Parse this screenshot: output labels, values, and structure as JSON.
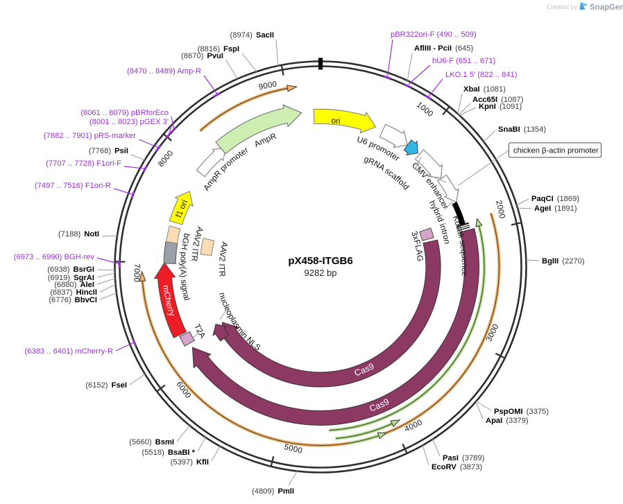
{
  "header": {
    "created_by": "Created by",
    "brand": "SnapGene"
  },
  "plasmid": {
    "name": "pX458-ITGB6",
    "size": "9282 bp"
  },
  "map": {
    "ticks": [
      "1000",
      "2000",
      "3000",
      "4000",
      "5000",
      "6000",
      "7000",
      "8000",
      "9000"
    ]
  },
  "features": {
    "ori": "ori",
    "u6_promoter": "U6 promoter",
    "grna_scaffold": "gRNA scaffold",
    "cmv_enhancer": "CMV enhancer",
    "chicken_promoter": "chicken β-actin promoter",
    "hybrid_intron": "hybrid intron",
    "kozak": "Kozak sequence",
    "flag": "3xFLAG",
    "cas9": "Cas9",
    "nls": "nucleoplasmin NLS",
    "t2a": "T2A",
    "mcherry": "mCherry",
    "bgh": "bGH poly(A) signal",
    "aav2_itr": "AAV2 ITR",
    "f1_ori": "f1 ori",
    "ampr": "AmpR",
    "ampr_promoter": "AmpR promoter"
  },
  "sites_left": [
    {
      "pos": "(8974)",
      "name": "SacII"
    },
    {
      "pos": "(8816)",
      "name": "FspI"
    },
    {
      "pos": "(8670)",
      "name": "PvuI"
    },
    {
      "pos": "(7768)",
      "name": "PsiI"
    },
    {
      "pos": "(7188)",
      "name": "NotI"
    },
    {
      "pos": "(6938)",
      "name": "BsrGI"
    },
    {
      "pos": "(6919)",
      "name": "SgrAI"
    },
    {
      "pos": "(6880)",
      "name": "AleI"
    },
    {
      "pos": "(6837)",
      "name": "HincII"
    },
    {
      "pos": "(6776)",
      "name": "BbvCI"
    },
    {
      "pos": "(6152)",
      "name": "FseI"
    },
    {
      "pos": "(5660)",
      "name": "BsmI"
    },
    {
      "pos": "(5518)",
      "name": "BsaBI *"
    },
    {
      "pos": "(5397)",
      "name": "KflI"
    },
    {
      "pos": "(4809)",
      "name": "PmlI"
    }
  ],
  "sites_right": [
    {
      "name": "AflIII - PciI",
      "pos": "(645)"
    },
    {
      "name": "XbaI",
      "pos": "(1081)"
    },
    {
      "name": "Acc65I",
      "pos": "(1087)"
    },
    {
      "name": "KpnI",
      "pos": "(1091)"
    },
    {
      "name": "SnaBI",
      "pos": "(1354)"
    },
    {
      "name": "PaqCI",
      "pos": "(1869)"
    },
    {
      "name": "AgeI",
      "pos": "(1891)"
    },
    {
      "name": "BglII",
      "pos": "(2270)"
    },
    {
      "name": "PspOMI",
      "pos": "(3375)"
    },
    {
      "name": "ApaI",
      "pos": "(3379)"
    },
    {
      "name": "PasI",
      "pos": "(3789)"
    },
    {
      "name": "EcoRV",
      "pos": "(3873)"
    }
  ],
  "primers_left": [
    {
      "text": "(8470 .. 8489)  Amp-R"
    },
    {
      "text": "(8061 .. 8079)  pBRforEco"
    },
    {
      "text": "(8001 .. 8023)  pGEX 3'"
    },
    {
      "text": "(7882 .. 7901)  pRS-marker"
    },
    {
      "text": "(7707 .. 7728)  F1ori-F"
    },
    {
      "text": "(7497 .. 7516)  F1ori-R"
    },
    {
      "text": "(6973 .. 6990)  BGH-rev"
    },
    {
      "text": "(6383 .. 6401)  mCherry-R"
    }
  ],
  "primers_right": [
    {
      "text": "pBR322ori-F  (490 .. 509)"
    },
    {
      "text": "hU6-F  (651 .. 671)"
    },
    {
      "text": "LKO.1 5'  (822 .. 841)"
    }
  ]
}
